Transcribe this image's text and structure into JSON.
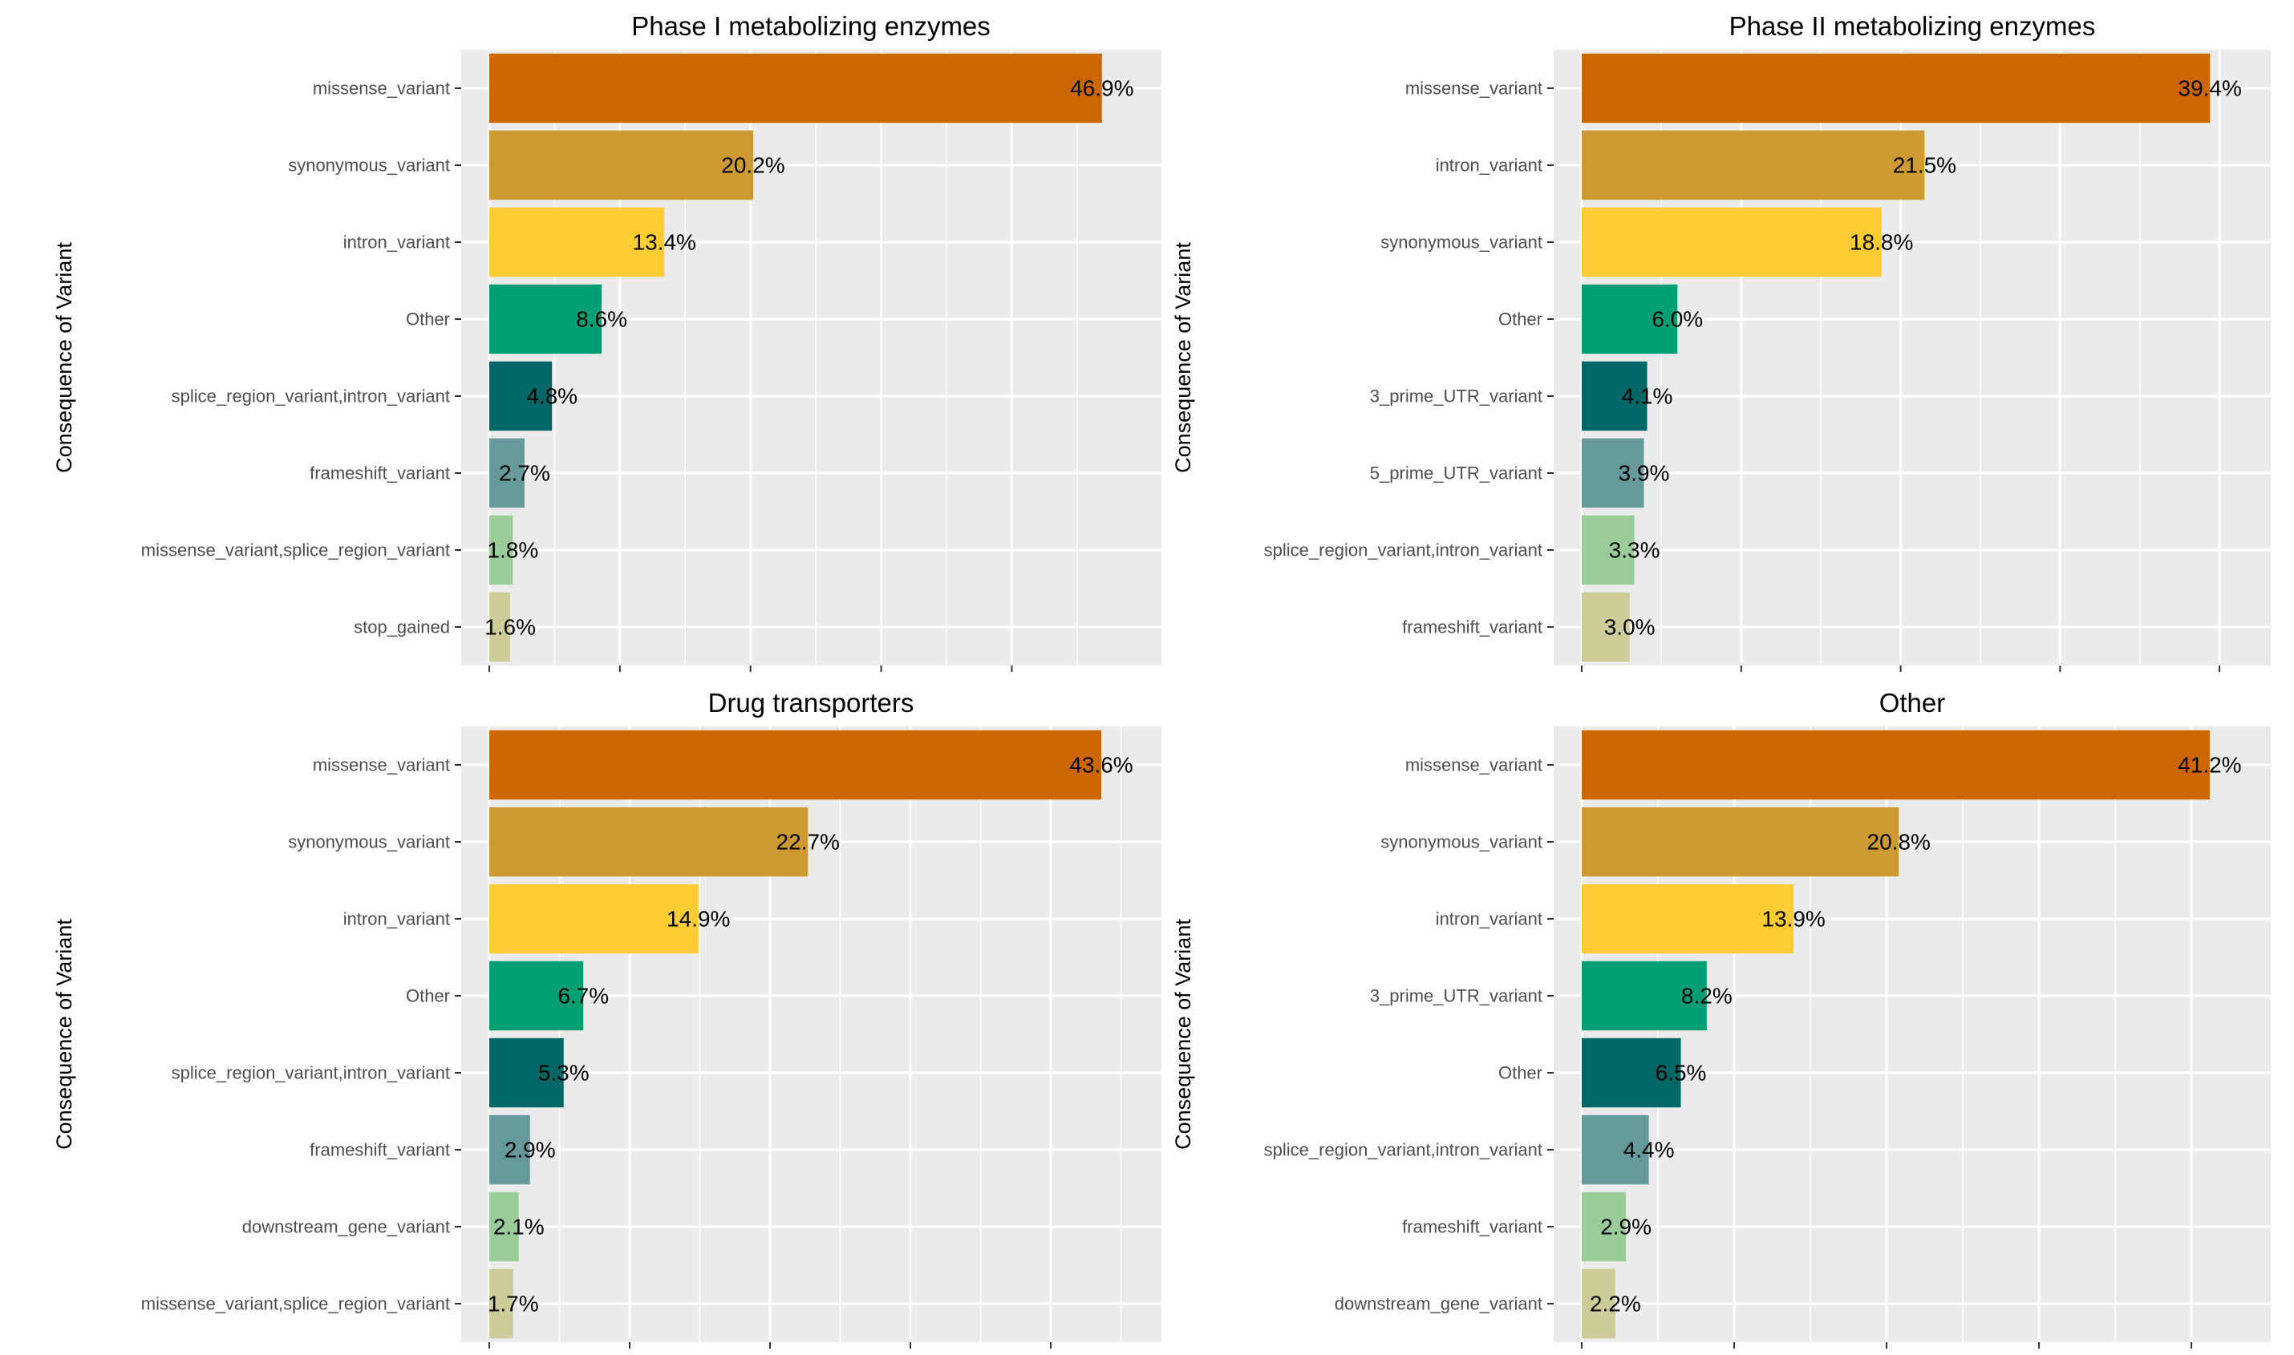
{
  "chart_data": [
    {
      "type": "bar",
      "orientation": "horizontal",
      "title": "Phase I metabolizing enzymes",
      "xlabel": "",
      "ylabel": "Consequence of Variant",
      "xlim": [
        0,
        49
      ],
      "grid": true,
      "categories": [
        "missense_variant",
        "synonymous_variant",
        "intron_variant",
        "Other",
        "splice_region_variant,intron_variant",
        "frameshift_variant",
        "missense_variant,splice_region_variant",
        "stop_gained"
      ],
      "values": [
        46.9,
        20.2,
        13.4,
        8.6,
        4.8,
        2.7,
        1.8,
        1.6
      ],
      "labels": [
        "46.9%",
        "20.2%",
        "13.4%",
        "8.6%",
        "4.8%",
        "2.7%",
        "1.8%",
        "1.6%"
      ]
    },
    {
      "type": "bar",
      "orientation": "horizontal",
      "title": "Phase II metabolizing enzymes",
      "xlabel": "",
      "ylabel": "Consequence of Variant",
      "xlim": [
        0,
        41.2
      ],
      "grid": true,
      "categories": [
        "missense_variant",
        "intron_variant",
        "synonymous_variant",
        "Other",
        "3_prime_UTR_variant",
        "5_prime_UTR_variant",
        "splice_region_variant,intron_variant",
        "frameshift_variant"
      ],
      "values": [
        39.4,
        21.5,
        18.8,
        6.0,
        4.1,
        3.9,
        3.3,
        3.0
      ],
      "labels": [
        "39.4%",
        "21.5%",
        "18.8%",
        "6.0%",
        "4.1%",
        "3.9%",
        "3.3%",
        "3.0%"
      ]
    },
    {
      "type": "bar",
      "orientation": "horizontal",
      "title": "Drug transporters",
      "xlabel": "",
      "ylabel": "Consequence of Variant",
      "xlim": [
        0,
        45.6
      ],
      "grid": true,
      "categories": [
        "missense_variant",
        "synonymous_variant",
        "intron_variant",
        "Other",
        "splice_region_variant,intron_variant",
        "frameshift_variant",
        "downstream_gene_variant",
        "missense_variant,splice_region_variant"
      ],
      "values": [
        43.6,
        22.7,
        14.9,
        6.7,
        5.3,
        2.9,
        2.1,
        1.7
      ],
      "labels": [
        "43.6%",
        "22.7%",
        "14.9%",
        "6.7%",
        "5.3%",
        "2.9%",
        "2.1%",
        "1.7%"
      ]
    },
    {
      "type": "bar",
      "orientation": "horizontal",
      "title": "Other",
      "xlabel": "",
      "ylabel": "Consequence of Variant",
      "xlim": [
        0,
        43.1
      ],
      "grid": true,
      "categories": [
        "missense_variant",
        "synonymous_variant",
        "intron_variant",
        "3_prime_UTR_variant",
        "Other",
        "splice_region_variant,intron_variant",
        "frameshift_variant",
        "downstream_gene_variant"
      ],
      "values": [
        41.2,
        20.8,
        13.9,
        8.2,
        6.5,
        4.4,
        2.9,
        2.2
      ],
      "labels": [
        "41.2%",
        "20.8%",
        "13.9%",
        "8.2%",
        "6.5%",
        "4.4%",
        "2.9%",
        "2.2%"
      ]
    }
  ],
  "palette": [
    "#cc6600",
    "#cc9933",
    "#ffcc33",
    "#009e73",
    "#006666",
    "#669999",
    "#99cc99",
    "#cccc99"
  ],
  "colors": {
    "panel_background": "#ebebeb",
    "grid": "#ffffff",
    "tick_label": "#4d4d4d",
    "text": "#000000"
  }
}
